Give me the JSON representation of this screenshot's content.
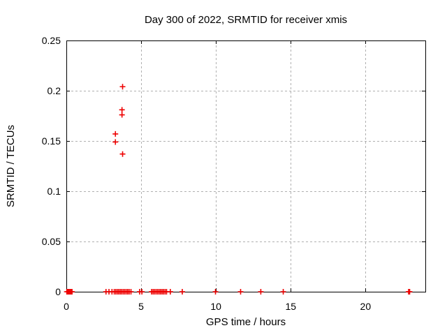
{
  "window": {
    "background": "#ffffff"
  },
  "chart_data": {
    "type": "scatter",
    "title": "Day 300 of 2022, SRMTID for receiver xmis",
    "xlabel": "GPS time / hours",
    "ylabel": "SRMTID / TECUs",
    "xlim": [
      0,
      24
    ],
    "ylim": [
      0,
      0.25
    ],
    "x_ticks": [
      0,
      5,
      10,
      15,
      20
    ],
    "x_tick_labels": [
      "0",
      "5",
      "10",
      "15",
      "20"
    ],
    "y_ticks": [
      0,
      0.05,
      0.1,
      0.15,
      0.2,
      0.25
    ],
    "y_tick_labels": [
      "0",
      "0.05",
      "0.1",
      "0.15",
      "0.2",
      "0.25"
    ],
    "grid": true,
    "legend_position": "none",
    "marker": "plus",
    "marker_color": "#ee0000",
    "grid_color": "#b0b0b0",
    "border_color": "#000000",
    "series": [
      {
        "name": "SRMTID",
        "points": [
          [
            3.28,
            0.149
          ],
          [
            3.28,
            0.157
          ],
          [
            3.72,
            0.176
          ],
          [
            3.72,
            0.181
          ],
          [
            3.76,
            0.204
          ],
          [
            3.76,
            0.137
          ],
          [
            0.03,
            0
          ],
          [
            0.1,
            0
          ],
          [
            0.17,
            0
          ],
          [
            0.24,
            0
          ],
          [
            0.31,
            0
          ],
          [
            0.38,
            0
          ],
          [
            2.65,
            0
          ],
          [
            2.85,
            0
          ],
          [
            3.05,
            0
          ],
          [
            3.2,
            0
          ],
          [
            3.3,
            0
          ],
          [
            3.4,
            0
          ],
          [
            3.5,
            0
          ],
          [
            3.6,
            0
          ],
          [
            3.7,
            0
          ],
          [
            3.8,
            0
          ],
          [
            3.9,
            0
          ],
          [
            4.0,
            0
          ],
          [
            4.1,
            0
          ],
          [
            4.2,
            0
          ],
          [
            4.32,
            0
          ],
          [
            4.9,
            0
          ],
          [
            5.05,
            0
          ],
          [
            5.7,
            0
          ],
          [
            5.8,
            0
          ],
          [
            5.9,
            0
          ],
          [
            6.0,
            0
          ],
          [
            6.1,
            0
          ],
          [
            6.2,
            0
          ],
          [
            6.3,
            0
          ],
          [
            6.4,
            0
          ],
          [
            6.5,
            0
          ],
          [
            6.6,
            0
          ],
          [
            6.7,
            0
          ],
          [
            6.95,
            0
          ],
          [
            7.75,
            0
          ],
          [
            9.97,
            0
          ],
          [
            11.65,
            0
          ],
          [
            13.0,
            0
          ],
          [
            14.5,
            0
          ],
          [
            22.88,
            0
          ],
          [
            22.95,
            0
          ]
        ]
      }
    ]
  }
}
